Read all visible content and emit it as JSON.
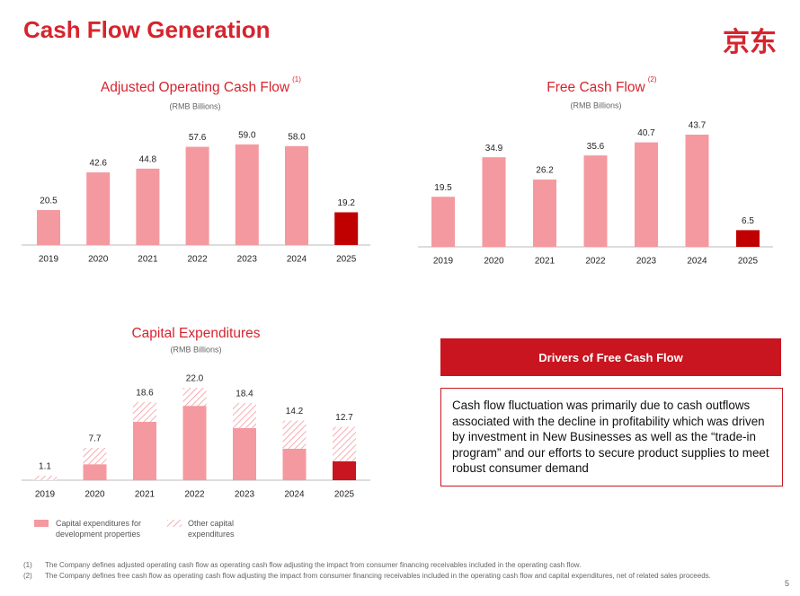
{
  "header": {
    "title": "Cash Flow Generation",
    "logo": "京东"
  },
  "chart_data": [
    {
      "type": "bar",
      "title": "Adjusted Operating Cash Flow",
      "title_note": "(1)",
      "subtitle": "(RMB Billions)",
      "categories": [
        "2019",
        "2020",
        "2021",
        "2022",
        "2023",
        "2024",
        "2025"
      ],
      "values": [
        20.5,
        42.6,
        44.8,
        57.6,
        59,
        58,
        19.2
      ],
      "value_labels": [
        "20.5",
        "42.6",
        "44.8",
        "57.6",
        "59.0",
        "58.0",
        "19.2"
      ],
      "colors": [
        "#f4999f",
        "#f4999f",
        "#f4999f",
        "#f4999f",
        "#f4999f",
        "#f4999f",
        "#c00000"
      ]
    },
    {
      "type": "bar",
      "title": "Free Cash Flow",
      "title_note": "(2)",
      "subtitle": "(RMB Billions)",
      "categories": [
        "2019",
        "2020",
        "2021",
        "2022",
        "2023",
        "2024",
        "2025"
      ],
      "values": [
        19.5,
        34.9,
        26.2,
        35.6,
        40.7,
        43.7,
        6.5
      ],
      "colors": [
        "#f4999f",
        "#f4999f",
        "#f4999f",
        "#f4999f",
        "#f4999f",
        "#f4999f",
        "#c00000"
      ]
    },
    {
      "type": "stacked_bar",
      "title": "Capital Expenditures",
      "subtitle": "(RMB Billions)",
      "categories": [
        "2019",
        "2020",
        "2021",
        "2022",
        "2023",
        "2024",
        "2025"
      ],
      "series": [
        {
          "name": "Capital expenditures for development properties",
          "color": "#f4999f",
          "colors": [
            "#f4999f",
            "#f4999f",
            "#f4999f",
            "#f4999f",
            "#f4999f",
            "#f4999f",
            "#c8151f"
          ],
          "values": [
            0,
            3.8,
            13.9,
            17.7,
            12.4,
            7.5,
            4.5
          ]
        },
        {
          "name": "Other capital expenditures",
          "color": "#f4999f",
          "values": [
            1.1,
            3.9,
            4.7,
            4.3,
            6.0,
            6.7,
            8.2
          ]
        }
      ],
      "totals": [
        1.1,
        7.7,
        18.6,
        22,
        18.4,
        14.2,
        12.7
      ],
      "total_labels": [
        "1.1",
        "7.7",
        "18.6",
        "22.0",
        "18.4",
        "14.2",
        "12.7"
      ]
    }
  ],
  "drivers": {
    "title": "Drivers of Free Cash Flow",
    "text": "Cash flow fluctuation was primarily due to cash outflows associated with the decline in profitability which was driven by investment in New Businesses as well as the “trade-in program” and our efforts to secure product supplies to meet robust consumer demand"
  },
  "footnotes": [
    {
      "marker": "(1)",
      "text": "The Company defines adjusted operating cash flow as operating cash flow adjusting the impact from consumer financing receivables included in the operating cash flow."
    },
    {
      "marker": "(2)",
      "text": "The Company defines free cash flow as operating cash flow adjusting the impact from consumer financing receivables included in the operating cash flow and capital expenditures, net of related sales proceeds."
    }
  ],
  "page_number": 5
}
